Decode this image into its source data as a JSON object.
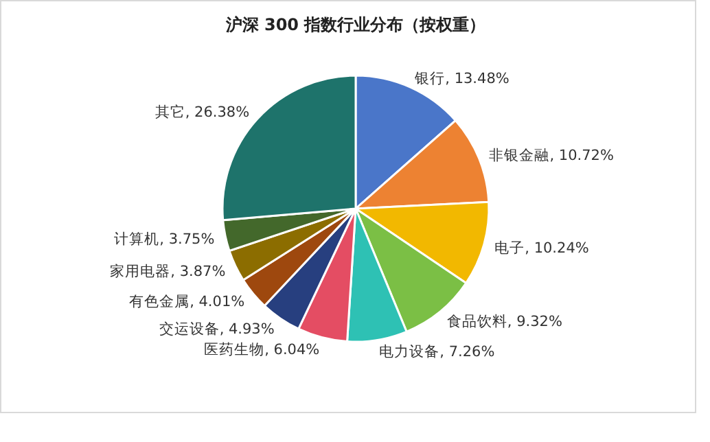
{
  "chart_data": {
    "type": "pie",
    "title": "沪深 300 指数行业分布（按权重）",
    "categories": [
      "银行",
      "非银金融",
      "电子",
      "食品饮料",
      "电力设备",
      "医药生物",
      "交运设备",
      "有色金属",
      "家用电器",
      "计算机",
      "其它"
    ],
    "values": [
      13.48,
      10.72,
      10.24,
      9.32,
      7.26,
      6.04,
      4.93,
      4.01,
      3.87,
      3.75,
      26.38
    ],
    "value_labels": [
      ", 13.48%",
      ", 10.72%",
      ", 10.24%",
      ", 9.32%",
      ", 7.26%",
      ", 6.04%",
      ", 4.93%",
      ", 4.01%",
      ", 3.87%",
      ", 3.75%",
      ", 26.38%"
    ],
    "colors": [
      "#4a76c9",
      "#ed8232",
      "#f2b800",
      "#7bbf45",
      "#2ec1b4",
      "#e44d63",
      "#273f7f",
      "#9e480e",
      "#8c6d00",
      "#43682b",
      "#1e736b"
    ]
  }
}
